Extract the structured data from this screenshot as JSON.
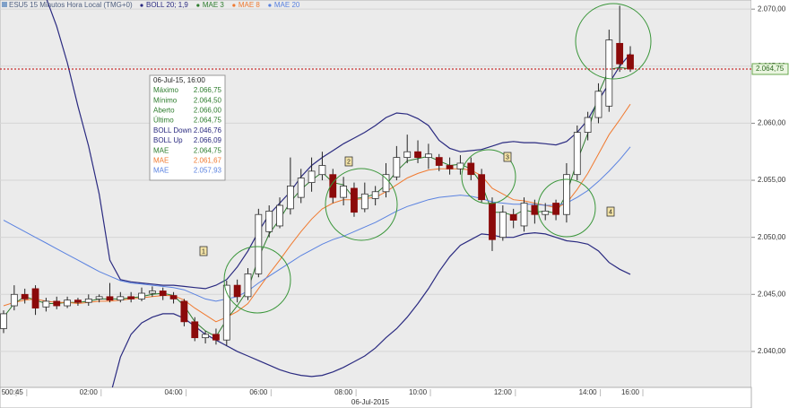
{
  "chart_data": {
    "type": "candlestick",
    "title": "ESU5 15 Minutos Hora Local (TMG+0)",
    "x_label": "06-Jul-2015",
    "categories": [
      "5",
      "00:45",
      null,
      null,
      null,
      null,
      null,
      null,
      "02:00",
      null,
      null,
      null,
      null,
      null,
      null,
      null,
      "04:00",
      null,
      null,
      null,
      null,
      null,
      null,
      null,
      "06:00",
      null,
      null,
      null,
      null,
      null,
      null,
      null,
      "08:00",
      null,
      null,
      null,
      null,
      null,
      null,
      "10:00",
      null,
      null,
      null,
      null,
      null,
      null,
      null,
      "12:00",
      null,
      null,
      null,
      null,
      null,
      null,
      null,
      "14:00",
      null,
      null,
      null,
      "16:00"
    ],
    "open": [
      2042.0,
      2044.0,
      2045.0,
      2045.5,
      2043.9,
      2044.4,
      2044.0,
      2044.5,
      2044.3,
      2044.6,
      2044.8,
      2044.5,
      2044.8,
      2044.6,
      2045.1,
      2045.3,
      2044.9,
      2044.4,
      2042.6,
      2041.2,
      2041.5,
      2041.0,
      2045.8,
      2044.8,
      2046.8,
      2050.5,
      2051.0,
      2052.5,
      2053.5,
      2054.8,
      2055.5,
      2055.5,
      2053.5,
      2054.3,
      2052.5,
      2053.4,
      2054.0,
      2055.3,
      2057.0,
      2057.5,
      2057.0,
      2057.0,
      2056.3,
      2056.0,
      2056.5,
      2055.5,
      2053.0,
      2050.0,
      2052.0,
      2051.0,
      2052.8,
      2052.0,
      2053.0,
      2052.0,
      2055.5,
      2059.2,
      2060.5,
      2061.5,
      2067.0,
      2066.0
    ],
    "high": [
      2043.6,
      2045.8,
      2045.5,
      2045.8,
      2044.7,
      2044.8,
      2044.8,
      2044.7,
      2045.0,
      2045.0,
      2046.0,
      2045.2,
      2045.2,
      2045.6,
      2045.7,
      2045.6,
      2045.2,
      2044.6,
      2043.0,
      2041.8,
      2042.0,
      2046.2,
      2046.3,
      2047.3,
      2052.5,
      2052.8,
      2053.5,
      2057.0,
      2056.0,
      2057.0,
      2057.5,
      2056.0,
      2055.3,
      2054.8,
      2054.8,
      2054.5,
      2056.5,
      2058.0,
      2059.0,
      2058.5,
      2058.2,
      2057.3,
      2057.0,
      2057.2,
      2057.0,
      2056.0,
      2053.5,
      2052.8,
      2052.5,
      2053.5,
      2053.3,
      2053.0,
      2053.3,
      2056.5,
      2059.8,
      2061.0,
      2063.5,
      2068.2,
      2070.3,
      2066.75
    ],
    "low": [
      2041.6,
      2043.6,
      2044.2,
      2043.2,
      2043.5,
      2043.7,
      2043.8,
      2044.0,
      2044.0,
      2044.3,
      2044.3,
      2044.3,
      2044.3,
      2044.4,
      2044.8,
      2044.5,
      2044.2,
      2042.2,
      2040.9,
      2040.7,
      2040.6,
      2040.5,
      2044.3,
      2044.5,
      2046.5,
      2050.0,
      2050.8,
      2052.0,
      2053.0,
      2054.0,
      2055.0,
      2053.0,
      2052.8,
      2051.8,
      2052.2,
      2052.8,
      2053.5,
      2055.0,
      2056.5,
      2056.5,
      2056.0,
      2055.8,
      2055.5,
      2055.5,
      2055.0,
      2053.0,
      2048.8,
      2049.7,
      2050.8,
      2050.5,
      2051.2,
      2051.5,
      2051.5,
      2051.3,
      2055.0,
      2058.5,
      2060.0,
      2061.0,
      2064.5,
      2064.5
    ],
    "close": [
      2043.3,
      2045.0,
      2044.6,
      2043.8,
      2044.4,
      2044.0,
      2044.5,
      2044.3,
      2044.6,
      2044.8,
      2044.5,
      2044.8,
      2044.6,
      2045.1,
      2045.3,
      2044.9,
      2044.6,
      2042.6,
      2041.2,
      2041.5,
      2041.0,
      2045.8,
      2044.8,
      2046.8,
      2052.0,
      2052.3,
      2052.8,
      2054.5,
      2055.2,
      2055.8,
      2056.3,
      2053.5,
      2054.5,
      2052.2,
      2053.8,
      2054.0,
      2055.5,
      2057.0,
      2057.5,
      2057.0,
      2057.3,
      2056.3,
      2056.0,
      2056.5,
      2055.5,
      2053.3,
      2049.8,
      2052.2,
      2051.5,
      2053.0,
      2052.0,
      2052.3,
      2052.0,
      2055.5,
      2059.2,
      2060.5,
      2062.8,
      2067.3,
      2065.2,
      2064.75
    ],
    "up_color": "#ffffff",
    "down_color": "#8b0a0a",
    "bollinger": {
      "name": "BOLL 20; 1,9",
      "color": "#2a2a80",
      "upper": [
        null,
        null,
        null,
        null,
        2071.0,
        2068.5,
        2065.3,
        2061.5,
        2058.0,
        2053.8,
        2048.0,
        2046.3,
        2046.1,
        2046.0,
        2045.9,
        2045.8,
        2045.8,
        2045.7,
        2045.6,
        2045.5,
        2045.8,
        2046.3,
        2047.4,
        2048.8,
        2050.5,
        2052.0,
        2053.0,
        2054.0,
        2055.3,
        2056.3,
        2057.0,
        2057.6,
        2058.2,
        2058.7,
        2059.2,
        2059.8,
        2060.5,
        2060.9,
        2060.8,
        2060.4,
        2059.8,
        2058.5,
        2057.8,
        2057.5,
        2057.6,
        2057.7,
        2058.0,
        2058.3,
        2058.4,
        2058.3,
        2058.3,
        2058.2,
        2058.1,
        2058.4,
        2059.2,
        2060.3,
        2062.0,
        2063.5,
        2065.0,
        2066.09
      ],
      "lower": [
        null,
        null,
        null,
        null,
        null,
        null,
        null,
        null,
        null,
        null,
        2036.0,
        2039.5,
        2041.5,
        2042.5,
        2043.0,
        2043.3,
        2043.3,
        2042.9,
        2042.2,
        2041.5,
        2041.0,
        2040.5,
        2040.0,
        2039.6,
        2039.2,
        2038.8,
        2038.4,
        2038.1,
        2037.9,
        2037.8,
        2037.9,
        2038.2,
        2038.6,
        2039.1,
        2039.6,
        2040.3,
        2041.2,
        2042.0,
        2043.0,
        2044.2,
        2045.5,
        2047.0,
        2048.3,
        2049.3,
        2049.8,
        2050.3,
        2050.2,
        2050.0,
        2050.0,
        2050.3,
        2050.4,
        2050.3,
        2050.0,
        2049.7,
        2049.6,
        2049.4,
        2048.8,
        2047.8,
        2047.2,
        2046.76
      ]
    },
    "series": [
      {
        "name": "MAE 3",
        "color": "#2e7d2e",
        "values": [
          2043.0,
          2044.2,
          2044.8,
          2044.5,
          2044.2,
          2044.2,
          2044.3,
          2044.3,
          2044.4,
          2044.6,
          2044.6,
          2044.6,
          2044.7,
          2044.8,
          2045.0,
          2045.1,
          2044.9,
          2044.0,
          2042.6,
          2041.8,
          2041.3,
          2042.8,
          2044.0,
          2045.4,
          2048.2,
          2050.3,
          2051.6,
          2053.1,
          2054.2,
          2055.0,
          2055.7,
          2054.8,
          2054.6,
          2053.4,
          2053.5,
          2053.8,
          2054.6,
          2055.8,
          2056.7,
          2056.9,
          2057.1,
          2056.7,
          2056.3,
          2056.4,
          2056.0,
          2054.7,
          2052.2,
          2052.2,
          2051.9,
          2052.4,
          2052.2,
          2052.3,
          2052.1,
          2053.8,
          2056.7,
          2059.1,
          2062.6,
          2064.7,
          2064.9,
          2064.75
        ]
      },
      {
        "name": "MAE 8",
        "color": "#f07a30",
        "values": [
          2044.0,
          2044.3,
          2044.5,
          2044.6,
          2044.4,
          2044.3,
          2044.3,
          2044.2,
          2044.3,
          2044.4,
          2044.4,
          2044.5,
          2044.6,
          2044.7,
          2044.8,
          2044.9,
          2044.9,
          2044.5,
          2043.8,
          2043.2,
          2042.6,
          2043.0,
          2043.5,
          2044.2,
          2045.5,
          2046.8,
          2048.0,
          2049.3,
          2050.5,
          2051.6,
          2052.5,
          2053.0,
          2053.3,
          2053.3,
          2053.4,
          2053.5,
          2054.0,
          2054.6,
          2055.2,
          2055.6,
          2055.9,
          2056.0,
          2056.0,
          2056.0,
          2055.9,
          2055.4,
          2054.3,
          2053.8,
          2053.3,
          2053.2,
          2053.0,
          2052.8,
          2052.6,
          2053.0,
          2054.2,
          2055.6,
          2057.3,
          2059.0,
          2060.3,
          2061.67
        ]
      },
      {
        "name": "MAE 20",
        "color": "#5a82e0",
        "values": [
          2051.5,
          2051.0,
          2050.5,
          2050.0,
          2049.5,
          2049.0,
          2048.5,
          2048.0,
          2047.5,
          2047.0,
          2046.6,
          2046.2,
          2046.0,
          2045.9,
          2045.8,
          2045.7,
          2045.6,
          2045.4,
          2045.0,
          2044.6,
          2044.4,
          2044.6,
          2044.8,
          2045.3,
          2046.0,
          2046.6,
          2047.2,
          2047.8,
          2048.4,
          2048.9,
          2049.4,
          2049.8,
          2050.1,
          2050.5,
          2050.9,
          2051.3,
          2051.8,
          2052.3,
          2052.7,
          2053.0,
          2053.3,
          2053.5,
          2053.6,
          2053.7,
          2053.6,
          2053.4,
          2053.1,
          2053.0,
          2052.9,
          2052.9,
          2052.9,
          2052.8,
          2052.8,
          2053.0,
          2053.5,
          2054.1,
          2054.9,
          2055.8,
          2056.8,
          2057.93
        ]
      }
    ],
    "ylim": [
      2036.85,
      2070.8
    ],
    "yticks": [
      {
        "value": 2040,
        "label": "2.040,00"
      },
      {
        "value": 2045,
        "label": "2.045,00"
      },
      {
        "value": 2050,
        "label": "2.050,00"
      },
      {
        "value": 2055,
        "label": "2.055,00"
      },
      {
        "value": 2060,
        "label": "2.060,00"
      },
      {
        "value": 2065,
        "label": "2.065,00"
      },
      {
        "value": 2070,
        "label": "2.070,00"
      }
    ],
    "grid": true,
    "last_price": {
      "value": 2064.75,
      "label": "2.064,75",
      "color": "#c00000"
    },
    "annotations": [
      "1",
      "2",
      "3",
      "4"
    ],
    "tooltip": {
      "title": "06-Jul-15, 16:00",
      "rows": [
        [
          "Máximo",
          "2.066,75"
        ],
        [
          "Mínimo",
          "2.064,50"
        ],
        [
          "Aberto",
          "2.066,00"
        ],
        [
          "Último",
          "2.064,75"
        ],
        [
          "BOLL Down",
          "2.046,76"
        ],
        [
          "BOLL Up",
          "2.066,09"
        ],
        [
          "MAE",
          "2.064,75"
        ],
        [
          "MAE",
          "2.061,67"
        ],
        [
          "MAE",
          "2.057,93"
        ]
      ]
    }
  }
}
